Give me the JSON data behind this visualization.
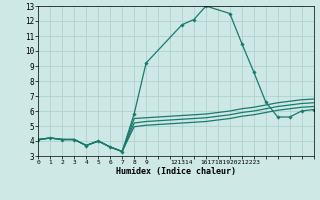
{
  "xlabel": "Humidex (Indice chaleur)",
  "bg_color": "#cde8e5",
  "grid_color": "#aacfcb",
  "line_color": "#1a7a6e",
  "xlim": [
    0,
    23
  ],
  "ylim": [
    3,
    13
  ],
  "xticks_all": [
    0,
    1,
    2,
    3,
    4,
    5,
    6,
    7,
    8,
    9,
    10,
    11,
    12,
    13,
    14,
    15,
    16,
    17,
    18,
    19,
    20,
    21,
    22,
    23
  ],
  "xtick_labels": [
    "0",
    "1",
    "2",
    "3",
    "4",
    "5",
    "6",
    "7",
    "8",
    "9",
    "",
    "",
    "121314",
    "",
    "",
    "",
    "161718192021",
    "",
    "",
    "",
    "",
    "2223",
    "",
    ""
  ],
  "yticks": [
    3,
    4,
    5,
    6,
    7,
    8,
    9,
    10,
    11,
    12,
    13
  ],
  "line1_x": [
    0,
    1,
    2,
    3,
    4,
    5,
    6,
    7,
    8,
    9,
    12,
    13,
    14,
    16,
    17,
    18,
    19,
    20,
    21,
    22,
    23
  ],
  "line1_y": [
    4.1,
    4.2,
    4.1,
    4.1,
    3.7,
    4.0,
    3.6,
    3.3,
    5.8,
    9.2,
    11.75,
    12.1,
    13.0,
    12.5,
    10.5,
    8.6,
    6.6,
    5.6,
    5.6,
    6.0,
    6.1
  ],
  "line2_x": [
    0,
    1,
    2,
    3,
    4,
    5,
    6,
    7,
    8,
    9,
    12,
    13,
    14,
    16,
    17,
    18,
    19,
    20,
    21,
    22,
    23
  ],
  "line2_y": [
    4.1,
    4.2,
    4.1,
    4.1,
    3.7,
    4.0,
    3.6,
    3.3,
    5.5,
    5.55,
    5.7,
    5.75,
    5.8,
    6.0,
    6.15,
    6.25,
    6.4,
    6.55,
    6.65,
    6.75,
    6.8
  ],
  "line3_x": [
    0,
    1,
    2,
    3,
    4,
    5,
    6,
    7,
    8,
    9,
    12,
    13,
    14,
    16,
    17,
    18,
    19,
    20,
    21,
    22,
    23
  ],
  "line3_y": [
    4.1,
    4.2,
    4.1,
    4.1,
    3.7,
    4.0,
    3.6,
    3.3,
    5.2,
    5.3,
    5.45,
    5.5,
    5.55,
    5.75,
    5.9,
    6.0,
    6.15,
    6.3,
    6.4,
    6.5,
    6.55
  ],
  "line4_x": [
    0,
    1,
    2,
    3,
    4,
    5,
    6,
    7,
    8,
    9,
    12,
    13,
    14,
    16,
    17,
    18,
    19,
    20,
    21,
    22,
    23
  ],
  "line4_y": [
    4.1,
    4.2,
    4.1,
    4.1,
    3.7,
    4.0,
    3.6,
    3.3,
    4.95,
    5.05,
    5.2,
    5.25,
    5.3,
    5.5,
    5.65,
    5.75,
    5.9,
    6.05,
    6.15,
    6.25,
    6.3
  ]
}
